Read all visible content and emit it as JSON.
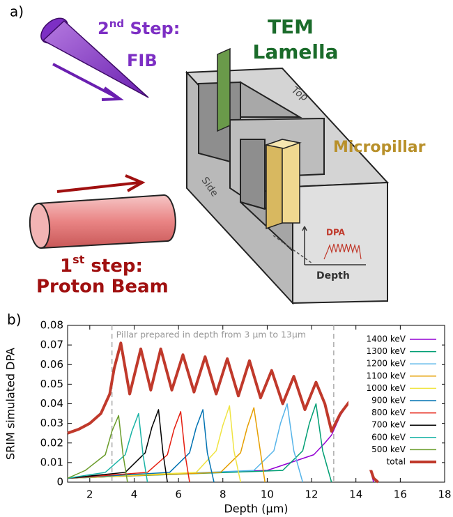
{
  "panel_labels": [
    "a)",
    "b)"
  ],
  "diagram": {
    "step2": {
      "number": "2",
      "suffix": "nd",
      "text": " Step:",
      "method": "FIB"
    },
    "lamella": [
      "TEM",
      "Lamella"
    ],
    "top": "Top",
    "side": "Side",
    "micropillar": "Micropillar",
    "inset": {
      "ylabel": "DPA",
      "xlabel": "Depth"
    },
    "step1": {
      "number": "1",
      "suffix": "st",
      "text": " step:",
      "method": "Proton Beam"
    }
  },
  "chart_data": {
    "type": "line",
    "xlabel": "Depth (µm)",
    "ylabel": "SRIM simulated DPA",
    "xlim": [
      1,
      18
    ],
    "xticks": [
      2,
      4,
      6,
      8,
      10,
      12,
      14,
      16,
      18
    ],
    "ylim": [
      0,
      0.08
    ],
    "yticks": [
      0,
      0.01,
      0.02,
      0.03,
      0.04,
      0.05,
      0.06,
      0.07,
      0.08
    ],
    "annotation": "Pillar prepared in depth from 3 µm to 13µm",
    "vlines": [
      3,
      13
    ],
    "legend": "upper right",
    "series": [
      {
        "name": "1400 keV",
        "color": "#9400d3",
        "x": [
          1,
          10,
          12.1,
          12.6,
          12.9,
          13.3,
          13.7,
          14.3,
          14.8
        ],
        "values": [
          0.002,
          0.006,
          0.014,
          0.02,
          0.024,
          0.034,
          0.041,
          0.02,
          0
        ]
      },
      {
        "name": "1300 keV",
        "color": "#009e73",
        "x": [
          1,
          10.7,
          11.6,
          11.9,
          12.2,
          12.5,
          12.9
        ],
        "values": [
          0.002,
          0.006,
          0.016,
          0.03,
          0.04,
          0.016,
          0
        ]
      },
      {
        "name": "1200 keV",
        "color": "#56b4e9",
        "x": [
          1,
          9.4,
          10.3,
          10.6,
          10.9,
          11.2,
          11.6
        ],
        "values": [
          0.002,
          0.006,
          0.016,
          0.03,
          0.04,
          0.016,
          0
        ]
      },
      {
        "name": "1100 keV",
        "color": "#e69f00",
        "x": [
          1,
          7.9,
          8.8,
          9.1,
          9.4,
          9.7,
          9.9
        ],
        "values": [
          0.002,
          0.005,
          0.015,
          0.028,
          0.038,
          0.015,
          0
        ]
      },
      {
        "name": "1000 keV",
        "color": "#f0e442",
        "x": [
          1,
          6.8,
          7.7,
          8.0,
          8.3,
          8.5,
          8.8
        ],
        "values": [
          0.002,
          0.005,
          0.016,
          0.029,
          0.039,
          0.016,
          0
        ]
      },
      {
        "name": "900 keV",
        "color": "#0072b2",
        "x": [
          1,
          5.6,
          6.5,
          6.8,
          7.1,
          7.3,
          7.6
        ],
        "values": [
          0.002,
          0.005,
          0.015,
          0.028,
          0.037,
          0.015,
          0
        ]
      },
      {
        "name": "800 keV",
        "color": "#e51e10",
        "x": [
          1,
          4.6,
          5.5,
          5.8,
          6.1,
          6.3,
          6.5
        ],
        "values": [
          0.002,
          0.005,
          0.014,
          0.027,
          0.036,
          0.014,
          0
        ]
      },
      {
        "name": "700 keV",
        "color": "#000000",
        "x": [
          1,
          3.6,
          4.5,
          4.8,
          5.1,
          5.3,
          5.5
        ],
        "values": [
          0.002,
          0.005,
          0.015,
          0.028,
          0.037,
          0.015,
          0
        ]
      },
      {
        "name": "600 keV",
        "color": "#1ab3a6",
        "x": [
          1,
          2.7,
          3.6,
          3.9,
          4.2,
          4.4,
          4.6
        ],
        "values": [
          0.002,
          0.005,
          0.014,
          0.026,
          0.035,
          0.014,
          0
        ]
      },
      {
        "name": "500 keV",
        "color": "#6a9c2a",
        "x": [
          1,
          1.8,
          2.7,
          3.0,
          3.3,
          3.5,
          3.7
        ],
        "values": [
          0.002,
          0.006,
          0.014,
          0.026,
          0.034,
          0.014,
          0
        ]
      },
      {
        "name": "total",
        "color": "#c0392b",
        "x": [
          1,
          1.5,
          2,
          2.5,
          2.9,
          3.1,
          3.4,
          3.8,
          4.3,
          4.75,
          5.2,
          5.7,
          6.2,
          6.7,
          7.2,
          7.7,
          8.2,
          8.7,
          9.2,
          9.7,
          10.2,
          10.7,
          11.2,
          11.7,
          12.2,
          12.6,
          12.9,
          13.3,
          13.7,
          14.0,
          14.4,
          14.8,
          15
        ],
        "values": [
          0.025,
          0.027,
          0.03,
          0.035,
          0.045,
          0.058,
          0.071,
          0.045,
          0.068,
          0.047,
          0.068,
          0.047,
          0.065,
          0.046,
          0.064,
          0.045,
          0.063,
          0.044,
          0.062,
          0.043,
          0.057,
          0.04,
          0.054,
          0.037,
          0.051,
          0.04,
          0.026,
          0.035,
          0.041,
          0.032,
          0.015,
          0.002,
          0
        ]
      }
    ]
  }
}
